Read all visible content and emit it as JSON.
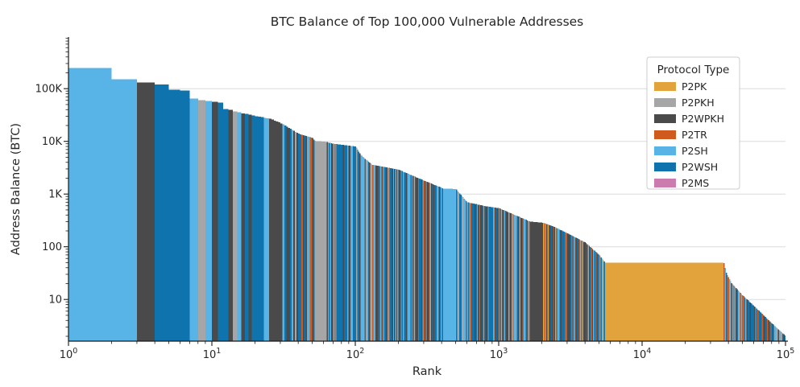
{
  "chart_data": {
    "type": "bar",
    "title": "BTC Balance of Top 100,000 Vulnerable Addresses",
    "xlabel": "Rank",
    "ylabel": "Address Balance (BTC)",
    "x_scale": "log",
    "y_scale": "log",
    "xlim": [
      1,
      100000
    ],
    "ylim": [
      1.6,
      950000
    ],
    "grid": "horizontal-only",
    "text_color": "#262626",
    "grid_color": "#dcdcdc",
    "axis_color": "#1a1a1a",
    "x_ticks": {
      "base": "10",
      "exponents": [
        "0",
        "1",
        "2",
        "3",
        "4",
        "5"
      ]
    },
    "y_ticks": [
      {
        "label": "100K",
        "value": 100000
      },
      {
        "label": "10K",
        "value": 10000
      },
      {
        "label": "1K",
        "value": 1000
      },
      {
        "label": "100",
        "value": 100
      },
      {
        "label": "10",
        "value": 10
      }
    ],
    "legend": {
      "title": "Protocol Type",
      "position": "upper-right",
      "entries": [
        {
          "label": "P2PK",
          "color": "#E2A33C"
        },
        {
          "label": "P2PKH",
          "color": "#A6A6A6"
        },
        {
          "label": "P2WPKH",
          "color": "#4A4A4A"
        },
        {
          "label": "P2TR",
          "color": "#D05A1E"
        },
        {
          "label": "P2SH",
          "color": "#58B4E6"
        },
        {
          "label": "P2WSH",
          "color": "#0F74AE"
        },
        {
          "label": "P2MS",
          "color": "#CB7BAE"
        }
      ]
    },
    "head_bars": [
      {
        "rank": 1,
        "btc": 248000,
        "type": "P2SH"
      },
      {
        "rank": 2,
        "btc": 151000,
        "type": "P2SH"
      },
      {
        "rank": 3,
        "btc": 132000,
        "type": "P2WPKH"
      },
      {
        "rank": 4,
        "btc": 121000,
        "type": "P2WSH"
      },
      {
        "rank": 5,
        "btc": 96000,
        "type": "P2WSH"
      },
      {
        "rank": 6,
        "btc": 92000,
        "type": "P2WSH"
      },
      {
        "rank": 7,
        "btc": 65000,
        "type": "P2SH"
      },
      {
        "rank": 8,
        "btc": 61000,
        "type": "P2PKH"
      },
      {
        "rank": 9,
        "btc": 58000,
        "type": "P2SH"
      },
      {
        "rank": 10,
        "btc": 56000,
        "type": "P2WPKH"
      },
      {
        "rank": 11,
        "btc": 54000,
        "type": "P2WSH"
      },
      {
        "rank": 12,
        "btc": 41000,
        "type": "P2WSH"
      },
      {
        "rank": 13,
        "btc": 39500,
        "type": "P2WPKH"
      },
      {
        "rank": 14,
        "btc": 37000,
        "type": "P2PKH"
      },
      {
        "rank": 15,
        "btc": 35500,
        "type": "P2SH"
      },
      {
        "rank": 16,
        "btc": 34000,
        "type": "P2WPKH"
      },
      {
        "rank": 17,
        "btc": 33000,
        "type": "P2WSH"
      },
      {
        "rank": 18,
        "btc": 32000,
        "type": "P2WPKH"
      },
      {
        "rank": 19,
        "btc": 31000,
        "type": "P2WSH"
      },
      {
        "rank": 20,
        "btc": 30000,
        "type": "P2WSH"
      }
    ],
    "curve": [
      [
        20,
        30000
      ],
      [
        25,
        27000
      ],
      [
        30,
        22000
      ],
      [
        40,
        14000
      ],
      [
        50,
        11500
      ],
      [
        52,
        10200
      ],
      [
        62,
        9800
      ],
      [
        70,
        9000
      ],
      [
        100,
        8000
      ],
      [
        108,
        5600
      ],
      [
        130,
        3600
      ],
      [
        200,
        2900
      ],
      [
        300,
        1800
      ],
      [
        410,
        1270
      ],
      [
        500,
        1250
      ],
      [
        600,
        700
      ],
      [
        800,
        590
      ],
      [
        1000,
        540
      ],
      [
        1650,
        300
      ],
      [
        2050,
        285
      ],
      [
        2500,
        230
      ],
      [
        3000,
        180
      ],
      [
        4000,
        120
      ],
      [
        5000,
        70
      ],
      [
        5500,
        50
      ],
      [
        37000,
        50
      ],
      [
        38500,
        31
      ],
      [
        42000,
        20
      ],
      [
        50000,
        12
      ],
      [
        60000,
        7.5
      ],
      [
        70000,
        5
      ],
      [
        80000,
        3.5
      ],
      [
        90000,
        2.6
      ],
      [
        100000,
        2.0
      ]
    ],
    "color_segments": [
      {
        "from": 21,
        "to": 42,
        "weights": {
          "P2WSH": 0.34,
          "P2WPKH": 0.3,
          "P2SH": 0.2,
          "P2PKH": 0.16
        }
      },
      {
        "from": 42,
        "to": 43,
        "weights": {
          "P2TR": 1
        }
      },
      {
        "from": 43,
        "to": 48,
        "weights": {
          "P2WSH": 0.4,
          "P2WPKH": 0.3,
          "P2SH": 0.3
        }
      },
      {
        "from": 48,
        "to": 50,
        "weights": {
          "P2TR": 1
        }
      },
      {
        "from": 50,
        "to": 52,
        "weights": {
          "P2WSH": 0.5,
          "P2WPKH": 0.5
        }
      },
      {
        "from": 52,
        "to": 63,
        "weights": {
          "P2PKH": 1
        }
      },
      {
        "from": 63,
        "to": 108,
        "weights": {
          "P2WSH": 0.3,
          "P2WPKH": 0.25,
          "P2SH": 0.2,
          "P2PKH": 0.15,
          "P2TR": 0.1
        }
      },
      {
        "from": 108,
        "to": 410,
        "weights": {
          "P2WSH": 0.32,
          "P2WPKH": 0.26,
          "P2SH": 0.18,
          "P2PKH": 0.12,
          "P2TR": 0.12
        }
      },
      {
        "from": 410,
        "to": 500,
        "weights": {
          "P2SH": 1
        }
      },
      {
        "from": 500,
        "to": 1650,
        "weights": {
          "P2WSH": 0.33,
          "P2WPKH": 0.27,
          "P2SH": 0.16,
          "P2PKH": 0.12,
          "P2TR": 0.12
        }
      },
      {
        "from": 1650,
        "to": 2050,
        "weights": {
          "P2WPKH": 1
        }
      },
      {
        "from": 2050,
        "to": 5500,
        "weights": {
          "P2WSH": 0.28,
          "P2WPKH": 0.24,
          "P2TR": 0.18,
          "P2SH": 0.14,
          "P2PKH": 0.1,
          "P2PK": 0.06
        }
      },
      {
        "from": 5500,
        "to": 37000,
        "weights": {
          "P2PK": 1
        }
      },
      {
        "from": 37000,
        "to": 100001,
        "weights": {
          "P2WSH": 0.28,
          "P2SH": 0.24,
          "P2WPKH": 0.2,
          "P2TR": 0.16,
          "P2PKH": 0.11,
          "P2MS": 0.01
        }
      }
    ]
  }
}
